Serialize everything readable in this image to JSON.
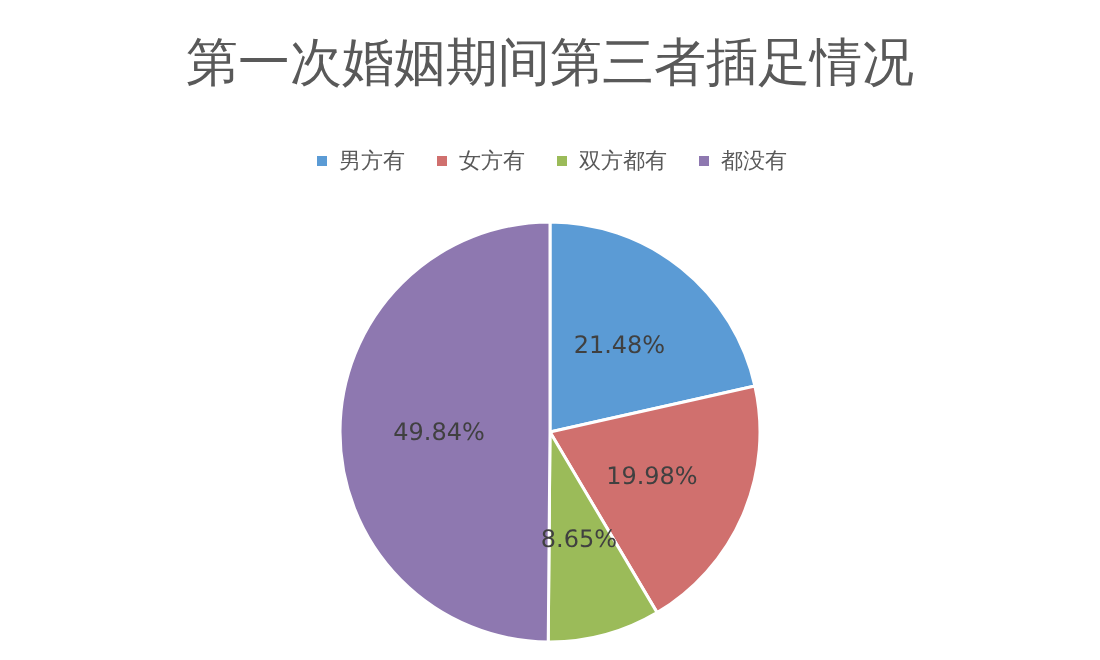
{
  "chart_data": {
    "type": "pie",
    "title": "第一次婚姻期间第三者插足情况",
    "categories": [
      "男方有",
      "女方有",
      "双方都有",
      "都没有"
    ],
    "values": [
      21.48,
      19.98,
      8.65,
      49.84
    ],
    "value_labels": [
      "21.48%",
      "19.98%",
      "8.65%",
      "49.84%"
    ],
    "colors": [
      "#5b9bd5",
      "#d0706e",
      "#9bbb59",
      "#8e78b0"
    ],
    "legend": "top"
  }
}
